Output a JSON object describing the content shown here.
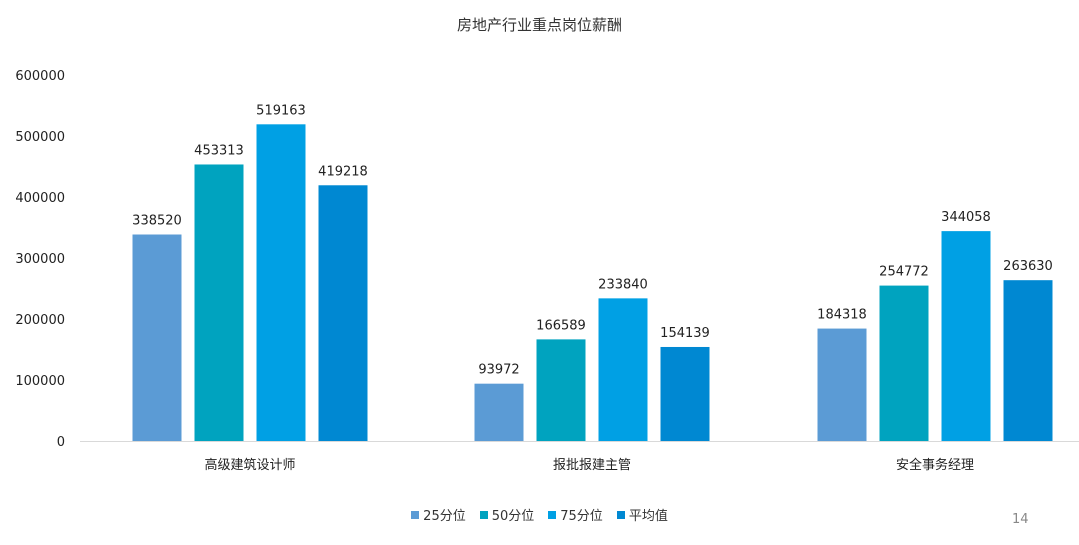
{
  "page_number": "14",
  "colors": {
    "axis": "#d9d9d9",
    "text": "#222222"
  },
  "chart_data": {
    "type": "bar",
    "title": "房地产行业重点岗位薪酬",
    "xlabel": "",
    "ylabel": "",
    "ylim": [
      0,
      600000
    ],
    "yticks": [
      "0",
      "100000",
      "200000",
      "300000",
      "400000",
      "500000",
      "600000"
    ],
    "grid": false,
    "legend_position": "bottom",
    "categories": [
      "高级建筑设计师",
      "报批报建主管",
      "安全事务经理"
    ],
    "series": [
      {
        "name": "25分位",
        "color": "#5b9bd5",
        "values": [
          338520,
          93972,
          184318
        ],
        "labels": [
          "338520",
          "93972",
          "184318"
        ]
      },
      {
        "name": "50分位",
        "color": "#00a3bf",
        "values": [
          453313,
          166589,
          254772
        ],
        "labels": [
          "453313",
          "166589",
          "254772"
        ]
      },
      {
        "name": "75分位",
        "color": "#00a0e4",
        "values": [
          519163,
          233840,
          344058
        ],
        "labels": [
          "519163",
          "233840",
          "344058"
        ]
      },
      {
        "name": "平均值",
        "color": "#0088d2",
        "values": [
          419218,
          154139,
          263630
        ],
        "labels": [
          "419218",
          "154139",
          "263630"
        ]
      }
    ]
  }
}
